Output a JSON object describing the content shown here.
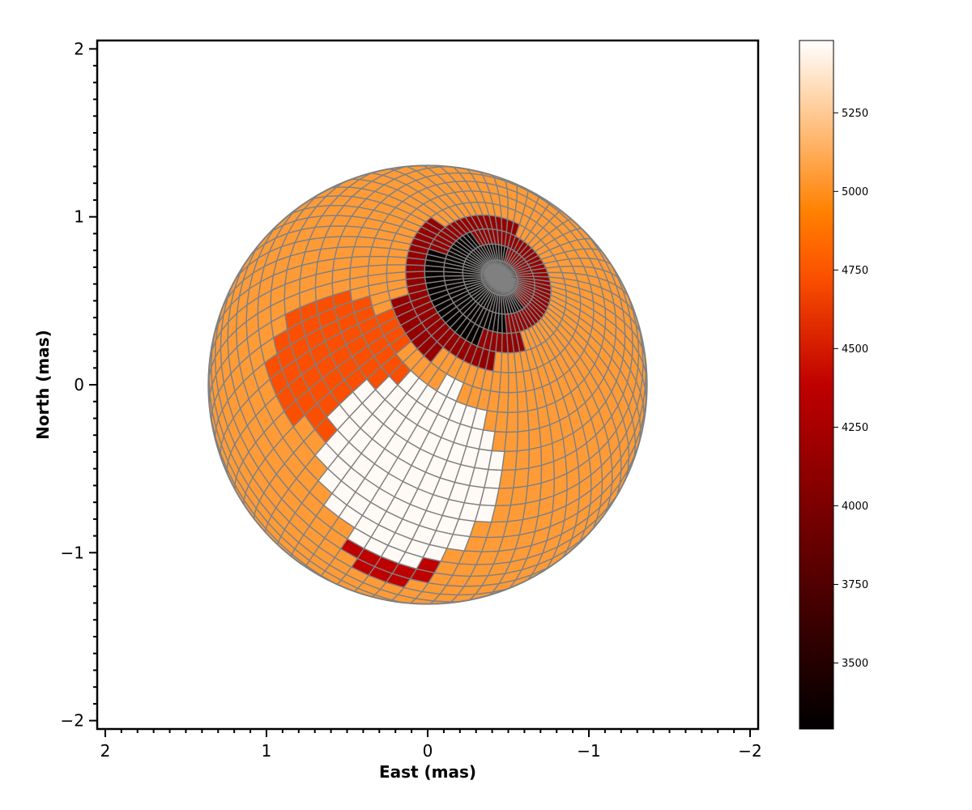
{
  "chart_data": {
    "type": "heatmap",
    "description_kind": "stellar surface temperature map projected on a sphere",
    "xlabel": "East (mas)",
    "ylabel": "North (mas)",
    "xlim": [
      2.05,
      -2.05
    ],
    "ylim": [
      -2.05,
      2.05
    ],
    "x_ticks": [
      {
        "value": 2,
        "label": "2"
      },
      {
        "value": 1,
        "label": "1"
      },
      {
        "value": 0,
        "label": "0"
      },
      {
        "value": -1,
        "label": "−1"
      },
      {
        "value": -2,
        "label": "−2"
      }
    ],
    "y_ticks": [
      {
        "value": 2,
        "label": "2"
      },
      {
        "value": 1,
        "label": "1"
      },
      {
        "value": 0,
        "label": "0"
      },
      {
        "value": -1,
        "label": "−1"
      },
      {
        "value": -2,
        "label": "−2"
      }
    ],
    "minor_tick_step": 0.1,
    "stellar_radius_mas": 1.36,
    "colorbar": {
      "colormap": "gist_heat",
      "vmin": 3290,
      "vmax": 5480,
      "ticks": [
        {
          "value": 3500,
          "label": "3500"
        },
        {
          "value": 3750,
          "label": "3750"
        },
        {
          "value": 4000,
          "label": "4000"
        },
        {
          "value": 4250,
          "label": "4250"
        },
        {
          "value": 4500,
          "label": "4500"
        },
        {
          "value": 4750,
          "label": "4750"
        },
        {
          "value": 5000,
          "label": "5000"
        },
        {
          "value": 5250,
          "label": "5250"
        }
      ]
    },
    "background_temperature": 5050,
    "spots": [
      {
        "name": "dark spot",
        "x": -0.27,
        "y": 0.57,
        "radius": 0.3,
        "temperature": 3330
      },
      {
        "name": "dark spot halo",
        "x": -0.27,
        "y": 0.57,
        "radius": 0.45,
        "temperature": 4150
      },
      {
        "name": "warm band",
        "x": 0.55,
        "y": 0.12,
        "radius": 0.42,
        "temperature": 4720
      },
      {
        "name": "lower cool spot",
        "x": 0.2,
        "y": -0.9,
        "radius": 0.3,
        "temperature": 4380
      },
      {
        "name": "bright band",
        "x": 0.1,
        "y": -0.5,
        "radius": 0.55,
        "temperature": 5460
      }
    ]
  },
  "colors": {
    "grid_line": "#808080",
    "axes": "#000000"
  }
}
